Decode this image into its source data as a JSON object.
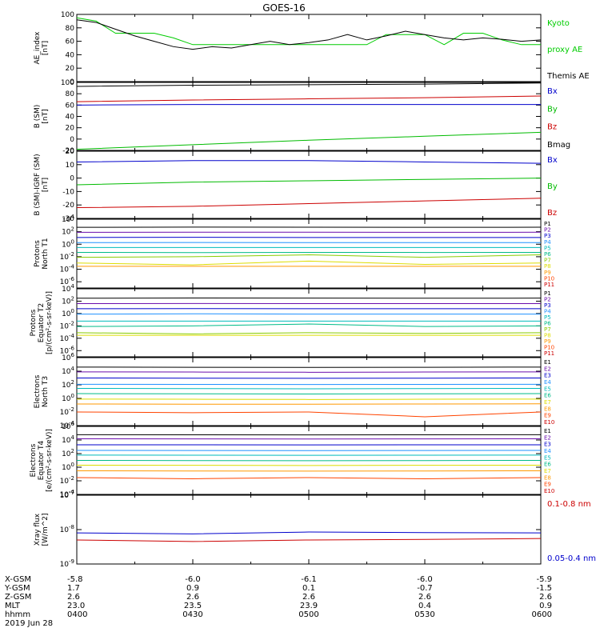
{
  "title": "GOES-16",
  "panels": [
    {
      "id": "ae",
      "ylabel": [
        "AE_index",
        "[nT]"
      ],
      "ylim": [
        0,
        100
      ],
      "yticks": [
        "0",
        "20",
        "40",
        "60",
        "80",
        "100"
      ],
      "legend": [
        {
          "text": "Kyoto",
          "color": "#00cc00"
        },
        {
          "text": "proxy AE",
          "color": "#00cc00"
        },
        {
          "text": "Themis AE",
          "color": "#000000"
        }
      ]
    },
    {
      "id": "bsm",
      "ylabel": [
        "B (SM)",
        "[nT]"
      ],
      "ylim": [
        -20,
        100
      ],
      "yticks": [
        "-20",
        "0",
        "20",
        "40",
        "60",
        "80",
        "100"
      ],
      "legend": [
        {
          "text": "Bx",
          "color": "#0000cc"
        },
        {
          "text": "By",
          "color": "#00bb00"
        },
        {
          "text": "Bz",
          "color": "#cc0000"
        },
        {
          "text": "Bmag",
          "color": "#000000"
        }
      ]
    },
    {
      "id": "bigrf",
      "ylabel": [
        "B (SM)-IGRF (SM)",
        "[nT]"
      ],
      "ylim": [
        -30,
        20
      ],
      "yticks": [
        "-30",
        "-20",
        "-10",
        "0",
        "10",
        "20"
      ],
      "legend": [
        {
          "text": "Bx",
          "color": "#0000cc"
        },
        {
          "text": "By",
          "color": "#00bb00"
        },
        {
          "text": "Bz",
          "color": "#cc0000"
        }
      ]
    },
    {
      "id": "pn",
      "ylabel": [
        "Protons",
        "North T1"
      ],
      "ylim_log": [
        -7,
        4
      ],
      "yticks": [
        "10^4",
        "10^2",
        "10^0",
        "10^-2",
        "10^-4",
        "10^-6"
      ],
      "legend_compact": [
        "P1",
        "P2",
        "P3",
        "P4",
        "P5",
        "P6",
        "P7",
        "P8",
        "P9",
        "P10",
        "P11"
      ]
    },
    {
      "id": "pe",
      "ylabel": [
        "Protons",
        "Equator T2",
        "[p/(cm²-s-sr-keV)]"
      ],
      "ylim_log": [
        -7,
        4
      ],
      "yticks": [
        "10^4",
        "10^2",
        "10^0",
        "10^-2",
        "10^-4",
        "10^-6"
      ],
      "legend_compact": [
        "P1",
        "P2",
        "P3",
        "P4",
        "P5",
        "P6",
        "P7",
        "P8",
        "P9",
        "P10",
        "P11"
      ]
    },
    {
      "id": "en",
      "ylabel": [
        "Electrons",
        "North T3"
      ],
      "ylim_log": [
        -4,
        6
      ],
      "yticks": [
        "10^6",
        "10^4",
        "10^2",
        "10^0",
        "10^-2",
        "10^-4"
      ],
      "legend_compact": [
        "E1",
        "E2",
        "E3",
        "E4",
        "E5",
        "E6",
        "E7",
        "E8",
        "E9",
        "E10"
      ]
    },
    {
      "id": "ee",
      "ylabel": [
        "Electrons",
        "Equator T4",
        "[e/(cm²-s-sr-keV)]"
      ],
      "ylim_log": [
        -4,
        6
      ],
      "yticks": [
        "10^6",
        "10^4",
        "10^2",
        "10^0",
        "10^-2",
        "10^-4"
      ],
      "legend_compact": [
        "E1",
        "E2",
        "E3",
        "E4",
        "E5",
        "E6",
        "E7",
        "E8",
        "E9",
        "E10"
      ]
    },
    {
      "id": "xray",
      "ylabel": [
        "Xray flux",
        "[W/m^2]"
      ],
      "ylim_log": [
        -9,
        -7
      ],
      "yticks": [
        "10^-7",
        "10^-8",
        "10^-9"
      ],
      "legend": [
        {
          "text": "0.1-0.8 nm",
          "color": "#cc0000"
        },
        {
          "text": "0.05-0.4 nm",
          "color": "#0000cc"
        }
      ]
    }
  ],
  "channel_colors": {
    "P": [
      "#000000",
      "#6a0dad",
      "#0000cc",
      "#1e90ff",
      "#00bbbb",
      "#00bb88",
      "#88cc00",
      "#dddd00",
      "#ff9900",
      "#ff4400",
      "#cc0000"
    ],
    "E": [
      "#000000",
      "#6a0dad",
      "#0000cc",
      "#1e90ff",
      "#00bbbb",
      "#00bb88",
      "#dddd00",
      "#ff9900",
      "#ff4400",
      "#cc0000"
    ]
  },
  "xaxis": {
    "rows": [
      {
        "label": "X-GSM",
        "values": [
          "-5.8",
          "-6.0",
          "-6.1",
          "-6.0",
          "-5.9"
        ]
      },
      {
        "label": "Y-GSM",
        "values": [
          "1.7",
          "0.9",
          "0.1",
          "-0.7",
          "-1.5"
        ]
      },
      {
        "label": "Z-GSM",
        "values": [
          "2.6",
          "2.6",
          "2.6",
          "2.6",
          "2.6"
        ]
      },
      {
        "label": "MLT",
        "values": [
          "23.0",
          "23.5",
          "23.9",
          "0.4",
          "0.9"
        ]
      },
      {
        "label": "hhmm",
        "values": [
          "0400",
          "0430",
          "0500",
          "0530",
          "0600"
        ]
      }
    ],
    "date": "2019 Jun 28"
  },
  "chart_data": [
    {
      "type": "line",
      "x_range": [
        "04:00",
        "06:00"
      ],
      "ylabel": "AE_index [nT]",
      "ylim": [
        0,
        100
      ],
      "x": [
        0,
        5,
        10,
        15,
        20,
        25,
        30,
        35,
        40,
        45,
        50,
        55,
        60,
        65,
        70,
        75,
        80,
        85,
        90,
        95,
        100,
        105,
        110,
        115,
        120
      ],
      "series": [
        {
          "name": "Kyoto proxy AE",
          "color": "#00cc00",
          "values": [
            95,
            90,
            72,
            72,
            72,
            65,
            55,
            55,
            55,
            55,
            55,
            55,
            55,
            55,
            55,
            55,
            70,
            70,
            70,
            55,
            72,
            72,
            62,
            55,
            55
          ]
        },
        {
          "name": "Themis AE",
          "color": "#000000",
          "values": [
            92,
            88,
            78,
            68,
            60,
            52,
            48,
            52,
            50,
            55,
            60,
            55,
            58,
            62,
            70,
            62,
            68,
            75,
            70,
            65,
            62,
            65,
            63,
            60,
            62
          ]
        }
      ]
    },
    {
      "type": "line",
      "ylabel": "B (SM) [nT]",
      "ylim": [
        -20,
        100
      ],
      "x": [
        0,
        30,
        60,
        90,
        120
      ],
      "series": [
        {
          "name": "Bx",
          "color": "#0000cc",
          "values": [
            60,
            61,
            61,
            61,
            61
          ]
        },
        {
          "name": "By",
          "color": "#00bb00",
          "values": [
            -18,
            -10,
            -2,
            5,
            12
          ]
        },
        {
          "name": "Bz",
          "color": "#cc0000",
          "values": [
            66,
            69,
            71,
            73,
            76
          ]
        },
        {
          "name": "Bmag",
          "color": "#000000",
          "values": [
            93,
            95,
            96,
            97,
            99
          ]
        }
      ]
    },
    {
      "type": "line",
      "ylabel": "B (SM)-IGRF (SM) [nT]",
      "ylim": [
        -30,
        20
      ],
      "x": [
        0,
        30,
        60,
        90,
        120
      ],
      "series": [
        {
          "name": "Bx",
          "color": "#0000cc",
          "values": [
            12,
            13,
            13,
            12,
            11
          ]
        },
        {
          "name": "By",
          "color": "#00bb00",
          "values": [
            -5,
            -3,
            -2,
            -1,
            0
          ]
        },
        {
          "name": "Bz",
          "color": "#cc0000",
          "values": [
            -22,
            -21,
            -19,
            -17,
            -15
          ]
        }
      ]
    },
    {
      "type": "line",
      "ylabel": "Protons North T1",
      "yscale": "log",
      "ylim": [
        1e-07,
        10000.0
      ],
      "x": [
        0,
        30,
        60,
        90,
        120
      ],
      "series": [
        {
          "name": "P1",
          "values": [
            500,
            550,
            520,
            500,
            520
          ]
        },
        {
          "name": "P2",
          "values": [
            80,
            85,
            82,
            80,
            82
          ]
        },
        {
          "name": "P3",
          "values": [
            12,
            13,
            12,
            12,
            12
          ]
        },
        {
          "name": "P4",
          "values": [
            1.8,
            1.9,
            1.8,
            1.8,
            1.8
          ]
        },
        {
          "name": "P5",
          "values": [
            0.3,
            0.3,
            0.3,
            0.3,
            0.3
          ]
        },
        {
          "name": "P6",
          "values": [
            0.05,
            0.045,
            0.05,
            0.048,
            0.05
          ]
        },
        {
          "name": "P7",
          "values": [
            0.008,
            0.01,
            0.02,
            0.008,
            0.02
          ]
        },
        {
          "name": "P8",
          "values": [
            0.001,
            0.0005,
            0.002,
            0.0006,
            0.001
          ]
        },
        {
          "name": "P9",
          "values": [
            0.0003,
            0.0003,
            0.0003,
            0.0003,
            0.0003
          ]
        }
      ]
    },
    {
      "type": "line",
      "ylabel": "Protons Equator T2 [p/(cm²-s-sr-keV)]",
      "yscale": "log",
      "ylim": [
        1e-07,
        10000.0
      ],
      "x": [
        0,
        30,
        60,
        90,
        120
      ],
      "series": [
        {
          "name": "P1",
          "values": [
            300,
            320,
            310,
            300,
            310
          ]
        },
        {
          "name": "P2",
          "values": [
            40,
            42,
            41,
            40,
            41
          ]
        },
        {
          "name": "P3",
          "values": [
            6,
            6.2,
            6,
            6,
            6
          ]
        },
        {
          "name": "P4",
          "values": [
            0.8,
            0.9,
            0.8,
            0.8,
            0.8
          ]
        },
        {
          "name": "P5",
          "values": [
            0.06,
            0.06,
            0.06,
            0.06,
            0.06
          ]
        },
        {
          "name": "P6",
          "values": [
            0.008,
            0.01,
            0.02,
            0.008,
            0.01
          ]
        },
        {
          "name": "P7",
          "values": [
            0.0008,
            0.0005,
            0.0008,
            0.0006,
            0.0008
          ]
        },
        {
          "name": "P8",
          "values": [
            0.0003,
            0.0003,
            0.0003,
            0.0003,
            0.0003
          ]
        }
      ]
    },
    {
      "type": "line",
      "ylabel": "Electrons North T3",
      "yscale": "log",
      "ylim": [
        0.0001,
        1000000.0
      ],
      "x": [
        0,
        30,
        60,
        90,
        120
      ],
      "series": [
        {
          "name": "E1",
          "values": [
            40000,
            38000,
            36000,
            38000,
            40000
          ]
        },
        {
          "name": "E2",
          "values": [
            8000,
            7500,
            7000,
            7500,
            8000
          ]
        },
        {
          "name": "E3",
          "values": [
            1000,
            950,
            900,
            950,
            1000
          ]
        },
        {
          "name": "E4",
          "values": [
            120,
            115,
            110,
            115,
            120
          ]
        },
        {
          "name": "E5",
          "values": [
            30,
            28,
            26,
            28,
            30
          ]
        },
        {
          "name": "E6",
          "values": [
            5,
            4.8,
            4.5,
            4.8,
            5
          ]
        },
        {
          "name": "E7",
          "values": [
            0.8,
            0.75,
            0.7,
            0.75,
            0.8
          ]
        },
        {
          "name": "E8",
          "values": [
            0.15,
            0.14,
            0.14,
            0.15,
            0.16
          ]
        },
        {
          "name": "E9",
          "values": [
            0.01,
            0.008,
            0.01,
            0.002,
            0.01
          ]
        }
      ]
    },
    {
      "type": "line",
      "ylabel": "Electrons Equator T4 [e/(cm²-s-sr-keV)]",
      "yscale": "log",
      "ylim": [
        0.0001,
        1000000.0
      ],
      "x": [
        0,
        30,
        60,
        90,
        120
      ],
      "series": [
        {
          "name": "E1",
          "values": [
            60000,
            58000,
            56000,
            58000,
            60000
          ]
        },
        {
          "name": "E2",
          "values": [
            15000,
            14500,
            14000,
            14500,
            15000
          ]
        },
        {
          "name": "E3",
          "values": [
            2000,
            1950,
            1900,
            1950,
            2000
          ]
        },
        {
          "name": "E4",
          "values": [
            300,
            290,
            280,
            290,
            300
          ]
        },
        {
          "name": "E5",
          "values": [
            60,
            58,
            56,
            58,
            60
          ]
        },
        {
          "name": "E6",
          "values": [
            10,
            9.5,
            9,
            9.5,
            10
          ]
        },
        {
          "name": "E7",
          "values": [
            2,
            1.9,
            1.8,
            1.9,
            2
          ]
        },
        {
          "name": "E8",
          "values": [
            0.3,
            0.28,
            0.27,
            0.28,
            0.3
          ]
        },
        {
          "name": "E9",
          "values": [
            0.03,
            0.02,
            0.03,
            0.02,
            0.03
          ]
        }
      ]
    },
    {
      "type": "line",
      "ylabel": "Xray flux [W/m^2]",
      "yscale": "log",
      "ylim": [
        1e-09,
        1e-07
      ],
      "x": [
        0,
        30,
        60,
        90,
        120
      ],
      "series": [
        {
          "name": "0.1-0.8 nm",
          "color": "#cc0000",
          "values": [
            5e-09,
            4.5e-09,
            5e-09,
            5.2e-09,
            5.5e-09
          ]
        },
        {
          "name": "0.05-0.4 nm",
          "color": "#0000cc",
          "values": [
            8e-09,
            7.5e-09,
            8.5e-09,
            8.2e-09,
            8e-09
          ]
        }
      ]
    }
  ]
}
